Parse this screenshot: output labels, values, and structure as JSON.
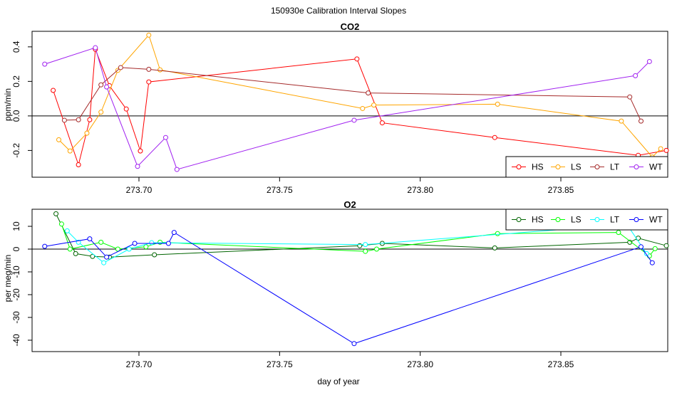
{
  "figure_title": "150930e   Calibration Interval Slopes",
  "chart_data": [
    {
      "type": "line",
      "title": "CO2",
      "xlabel": "",
      "ylabel": "ppm/min",
      "xlim": [
        273.662,
        273.888
      ],
      "ylim": [
        -0.355,
        0.49
      ],
      "x_ticks": [
        "273.70",
        "273.75",
        "273.80",
        "273.85"
      ],
      "x_tick_values": [
        273.7,
        273.75,
        273.8,
        273.85
      ],
      "y_ticks": [
        "-0.2",
        "0.0",
        "0.2",
        "0.4"
      ],
      "y_tick_values": [
        -0.2,
        0.0,
        0.2,
        0.4
      ],
      "reference_line": 0,
      "legend_position": "bottom-right",
      "series": [
        {
          "name": "HS",
          "color": "#ff0000",
          "x": [
            273.6695,
            273.6785,
            273.6825,
            273.6845,
            273.6895,
            273.6955,
            273.7005,
            273.7035,
            273.7775,
            273.7865,
            273.8265,
            273.8775,
            273.8875
          ],
          "y": [
            0.148,
            -0.283,
            -0.022,
            0.386,
            0.175,
            0.04,
            -0.203,
            0.197,
            0.33,
            -0.04,
            -0.125,
            -0.228,
            -0.2
          ]
        },
        {
          "name": "LS",
          "color": "#ffa500",
          "x": [
            273.6715,
            273.6755,
            273.6815,
            273.6865,
            273.6925,
            273.7035,
            273.7075,
            273.7795,
            273.7835,
            273.8275,
            273.8715,
            273.8825,
            273.8855
          ],
          "y": [
            -0.138,
            -0.203,
            -0.1,
            0.022,
            0.264,
            0.468,
            0.267,
            0.043,
            0.063,
            0.068,
            -0.03,
            -0.238,
            -0.19
          ]
        },
        {
          "name": "LT",
          "color": "#a52a2a",
          "x": [
            273.6735,
            273.6785,
            273.6865,
            273.6935,
            273.7035,
            273.7815,
            273.8745,
            273.8785
          ],
          "y": [
            -0.025,
            -0.022,
            0.18,
            0.28,
            0.27,
            0.133,
            0.11,
            -0.03
          ]
        },
        {
          "name": "WT",
          "color": "#a020f0",
          "x": [
            273.6665,
            273.6845,
            273.6885,
            273.6995,
            273.7095,
            273.7135,
            273.7765,
            273.8765,
            273.8815
          ],
          "y": [
            0.3,
            0.395,
            0.168,
            -0.292,
            -0.125,
            -0.31,
            -0.025,
            0.233,
            0.315
          ]
        }
      ]
    },
    {
      "type": "line",
      "title": "O2",
      "xlabel": "day of year",
      "ylabel": "per meg/min",
      "xlim": [
        273.662,
        273.888
      ],
      "ylim": [
        -45.0,
        17.5
      ],
      "x_ticks": [
        "273.70",
        "273.75",
        "273.80",
        "273.85"
      ],
      "x_tick_values": [
        273.7,
        273.75,
        273.8,
        273.85
      ],
      "y_ticks": [
        "-40",
        "-30",
        "-20",
        "-10",
        "0",
        "10"
      ],
      "y_tick_values": [
        -40,
        -30,
        -20,
        -10,
        0,
        10
      ],
      "reference_line": 0,
      "legend_position": "top-right",
      "series": [
        {
          "name": "HS",
          "color": "#006400",
          "x": [
            273.6705,
            273.6775,
            273.6835,
            273.6895,
            273.7055,
            273.7785,
            273.7865,
            273.8265,
            273.8745,
            273.8775,
            273.8875
          ],
          "y": [
            15.5,
            -2.0,
            -3.2,
            -3.5,
            -2.5,
            1.5,
            2.5,
            0.5,
            3.0,
            4.8,
            1.5
          ]
        },
        {
          "name": "LS",
          "color": "#00ff00",
          "x": [
            273.6725,
            273.6755,
            273.6865,
            273.6925,
            273.7025,
            273.7075,
            273.7805,
            273.7845,
            273.8275,
            273.8705,
            273.8815,
            273.8835
          ],
          "y": [
            11.0,
            0.0,
            3.0,
            0.0,
            1.0,
            3.0,
            -1.0,
            0.0,
            6.8,
            7.3,
            -3.0,
            0.2
          ]
        },
        {
          "name": "LT",
          "color": "#00ffff",
          "x": [
            273.6745,
            273.6785,
            273.6875,
            273.6965,
            273.7045,
            273.7805,
            273.8735,
            273.8805
          ],
          "y": [
            8.0,
            3.0,
            -6.0,
            0.0,
            2.8,
            2.0,
            10.8,
            -2.0
          ]
        },
        {
          "name": "WT",
          "color": "#0000ff",
          "x": [
            273.6665,
            273.6825,
            273.6885,
            273.6985,
            273.7105,
            273.7125,
            273.7765,
            273.8785,
            273.8825
          ],
          "y": [
            1.2,
            4.5,
            -3.5,
            2.5,
            2.5,
            7.3,
            -41.5,
            1.0,
            -6.0
          ]
        }
      ]
    }
  ]
}
